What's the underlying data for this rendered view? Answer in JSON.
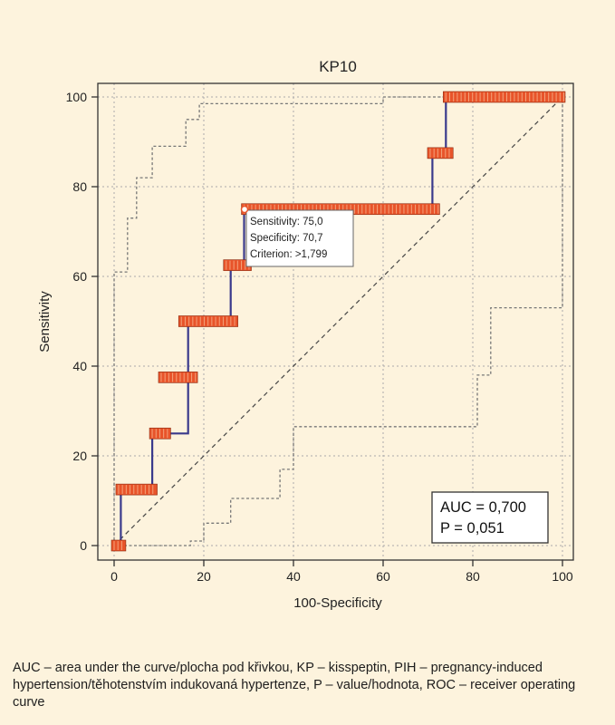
{
  "caption": "AUC – area under the curve/plocha pod křivkou, KP – kisspeptin, PIH – pregnancy-induced hypertension/těhotenstvím indukovaná hypertenze, P – value/hodnota, ROC – receiver operating curve",
  "colors": {
    "background": "#fdf3dd",
    "roc_line": "#3a3a8c",
    "marker_fill": "#e8542a",
    "marker_stroke": "#8a2a10",
    "ci_line": "#777777",
    "diagonal": "#444444",
    "grid": "#aaaaaa"
  },
  "chart_data": {
    "type": "line",
    "title": "KP10",
    "xlabel": "100-Specificity",
    "ylabel": "Sensitivity",
    "xlim": [
      0,
      100
    ],
    "ylim": [
      0,
      100
    ],
    "xticks": [
      "0",
      "20",
      "40",
      "60",
      "80",
      "100"
    ],
    "yticks": [
      "0",
      "20",
      "40",
      "60",
      "80",
      "100"
    ],
    "grid": true,
    "series": [
      {
        "role": "roc",
        "points": [
          [
            0,
            0
          ],
          [
            1.5,
            0
          ],
          [
            1.5,
            12.5
          ],
          [
            8.5,
            12.5
          ],
          [
            8.5,
            25
          ],
          [
            16.5,
            25
          ],
          [
            16.5,
            37.5
          ],
          [
            16.5,
            50
          ],
          [
            26,
            50
          ],
          [
            26,
            62.5
          ],
          [
            29,
            62.5
          ],
          [
            29,
            75
          ],
          [
            71,
            75
          ],
          [
            71,
            87.5
          ],
          [
            74,
            87.5
          ],
          [
            74,
            100
          ],
          [
            100,
            100
          ]
        ],
        "marker_segments": [
          [
            0,
            0,
            2
          ],
          [
            1,
            12.5,
            9
          ],
          [
            8.5,
            25,
            12
          ],
          [
            10.5,
            37.5,
            18
          ],
          [
            15,
            50,
            27
          ],
          [
            25,
            62.5,
            30
          ],
          [
            29,
            75,
            72
          ],
          [
            70.5,
            87.5,
            75
          ],
          [
            74,
            100,
            100
          ]
        ]
      },
      {
        "role": "ci-upper",
        "points": [
          [
            0,
            0
          ],
          [
            0,
            61
          ],
          [
            3,
            61
          ],
          [
            3,
            73
          ],
          [
            5,
            73
          ],
          [
            5,
            82
          ],
          [
            8.5,
            82
          ],
          [
            8.5,
            89
          ],
          [
            16,
            89
          ],
          [
            16,
            95
          ],
          [
            19,
            95
          ],
          [
            19,
            98.5
          ],
          [
            60,
            98.5
          ],
          [
            60,
            100
          ],
          [
            100,
            100
          ]
        ]
      },
      {
        "role": "ci-lower",
        "points": [
          [
            0,
            0
          ],
          [
            17,
            0
          ],
          [
            17,
            1
          ],
          [
            20,
            1
          ],
          [
            20,
            5
          ],
          [
            26,
            5
          ],
          [
            26,
            10.5
          ],
          [
            37,
            10.5
          ],
          [
            37,
            17
          ],
          [
            40,
            17
          ],
          [
            40,
            26.5
          ],
          [
            81,
            26.5
          ],
          [
            81,
            38
          ],
          [
            84,
            38
          ],
          [
            84,
            53
          ],
          [
            100,
            53
          ],
          [
            100,
            100
          ]
        ]
      },
      {
        "role": "diagonal",
        "points": [
          [
            0,
            0
          ],
          [
            100,
            100
          ]
        ]
      }
    ],
    "annotation": {
      "point": [
        29,
        75
      ],
      "lines": [
        "Sensitivity: 75,0",
        "Specificity: 70,7",
        "Criterion: >1,799"
      ]
    },
    "auc_box": {
      "lines": [
        "AUC = 0,700",
        "P = 0,051"
      ]
    }
  }
}
